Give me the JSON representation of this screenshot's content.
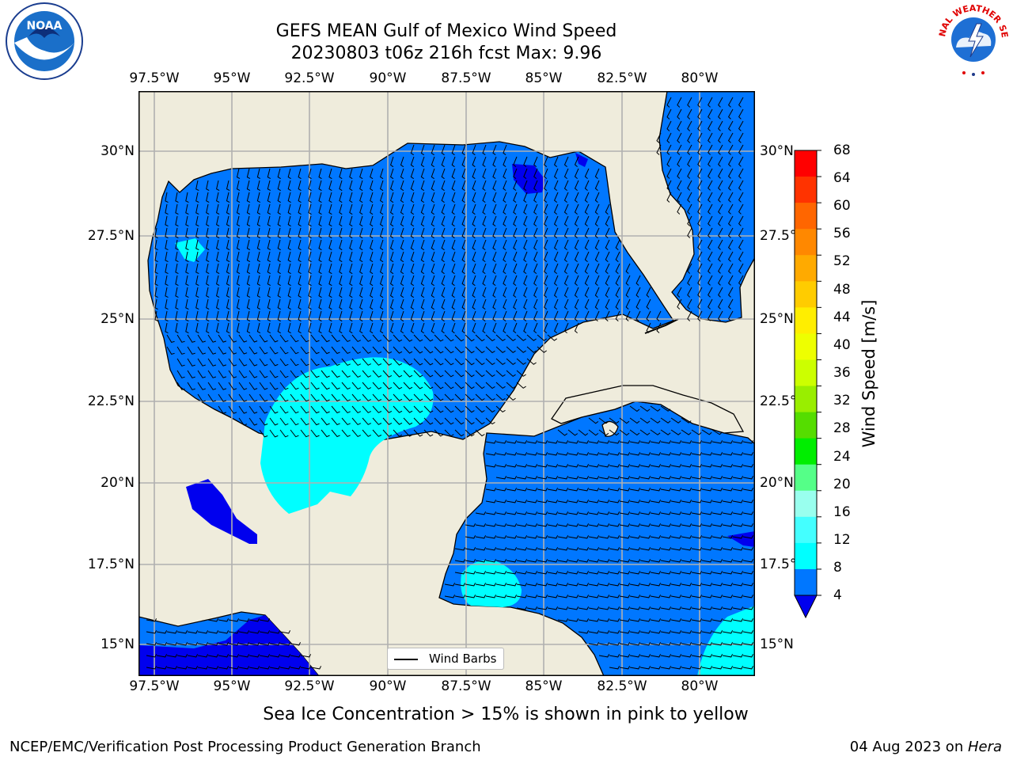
{
  "title": {
    "line1": "GEFS MEAN Gulf of Mexico Wind Speed",
    "line2": "20230803 t06z 216h fcst   Max: 9.96"
  },
  "axes": {
    "lon_labels": [
      "97.5°W",
      "95°W",
      "92.5°W",
      "90°W",
      "87.5°W",
      "85°W",
      "82.5°W",
      "80°W"
    ],
    "lat_labels": [
      "30°N",
      "27.5°N",
      "25°N",
      "22.5°N",
      "20°N",
      "17.5°N",
      "15°N"
    ]
  },
  "colorbar": {
    "title": "Wind Speed [m/s]",
    "ticks": [
      "68",
      "64",
      "60",
      "56",
      "52",
      "48",
      "44",
      "40",
      "36",
      "32",
      "28",
      "24",
      "20",
      "16",
      "12",
      "8",
      "4"
    ],
    "colors": [
      "#ff0000",
      "#ff3300",
      "#ff6600",
      "#ff8800",
      "#ffaa00",
      "#ffcc00",
      "#ffee00",
      "#eeff00",
      "#ccff00",
      "#99ee00",
      "#55dd00",
      "#00ee00",
      "#55ff88",
      "#99ffee",
      "#44ffff",
      "#00ffff",
      "#0077ff"
    ],
    "extend_color": "#0000ee"
  },
  "map_colors": {
    "land": "#efecdc",
    "ocean_4_8": "#0077ff",
    "ocean_8_12": "#00ffff",
    "ocean_lt_4": "#0000ee",
    "grid": "#b0b0b0"
  },
  "legend": {
    "label": "Wind Barbs"
  },
  "note": "Sea Ice Concentration > 15% is shown in pink to yellow",
  "footer": {
    "left": "NCEP/EMC/Verification Post Processing Product Generation Branch",
    "date": "04 Aug 2023 on ",
    "host": "Hera"
  },
  "logos": {
    "noaa_text": "NOAA",
    "nws_text": "NATIONAL WEATHER SERVICE"
  }
}
